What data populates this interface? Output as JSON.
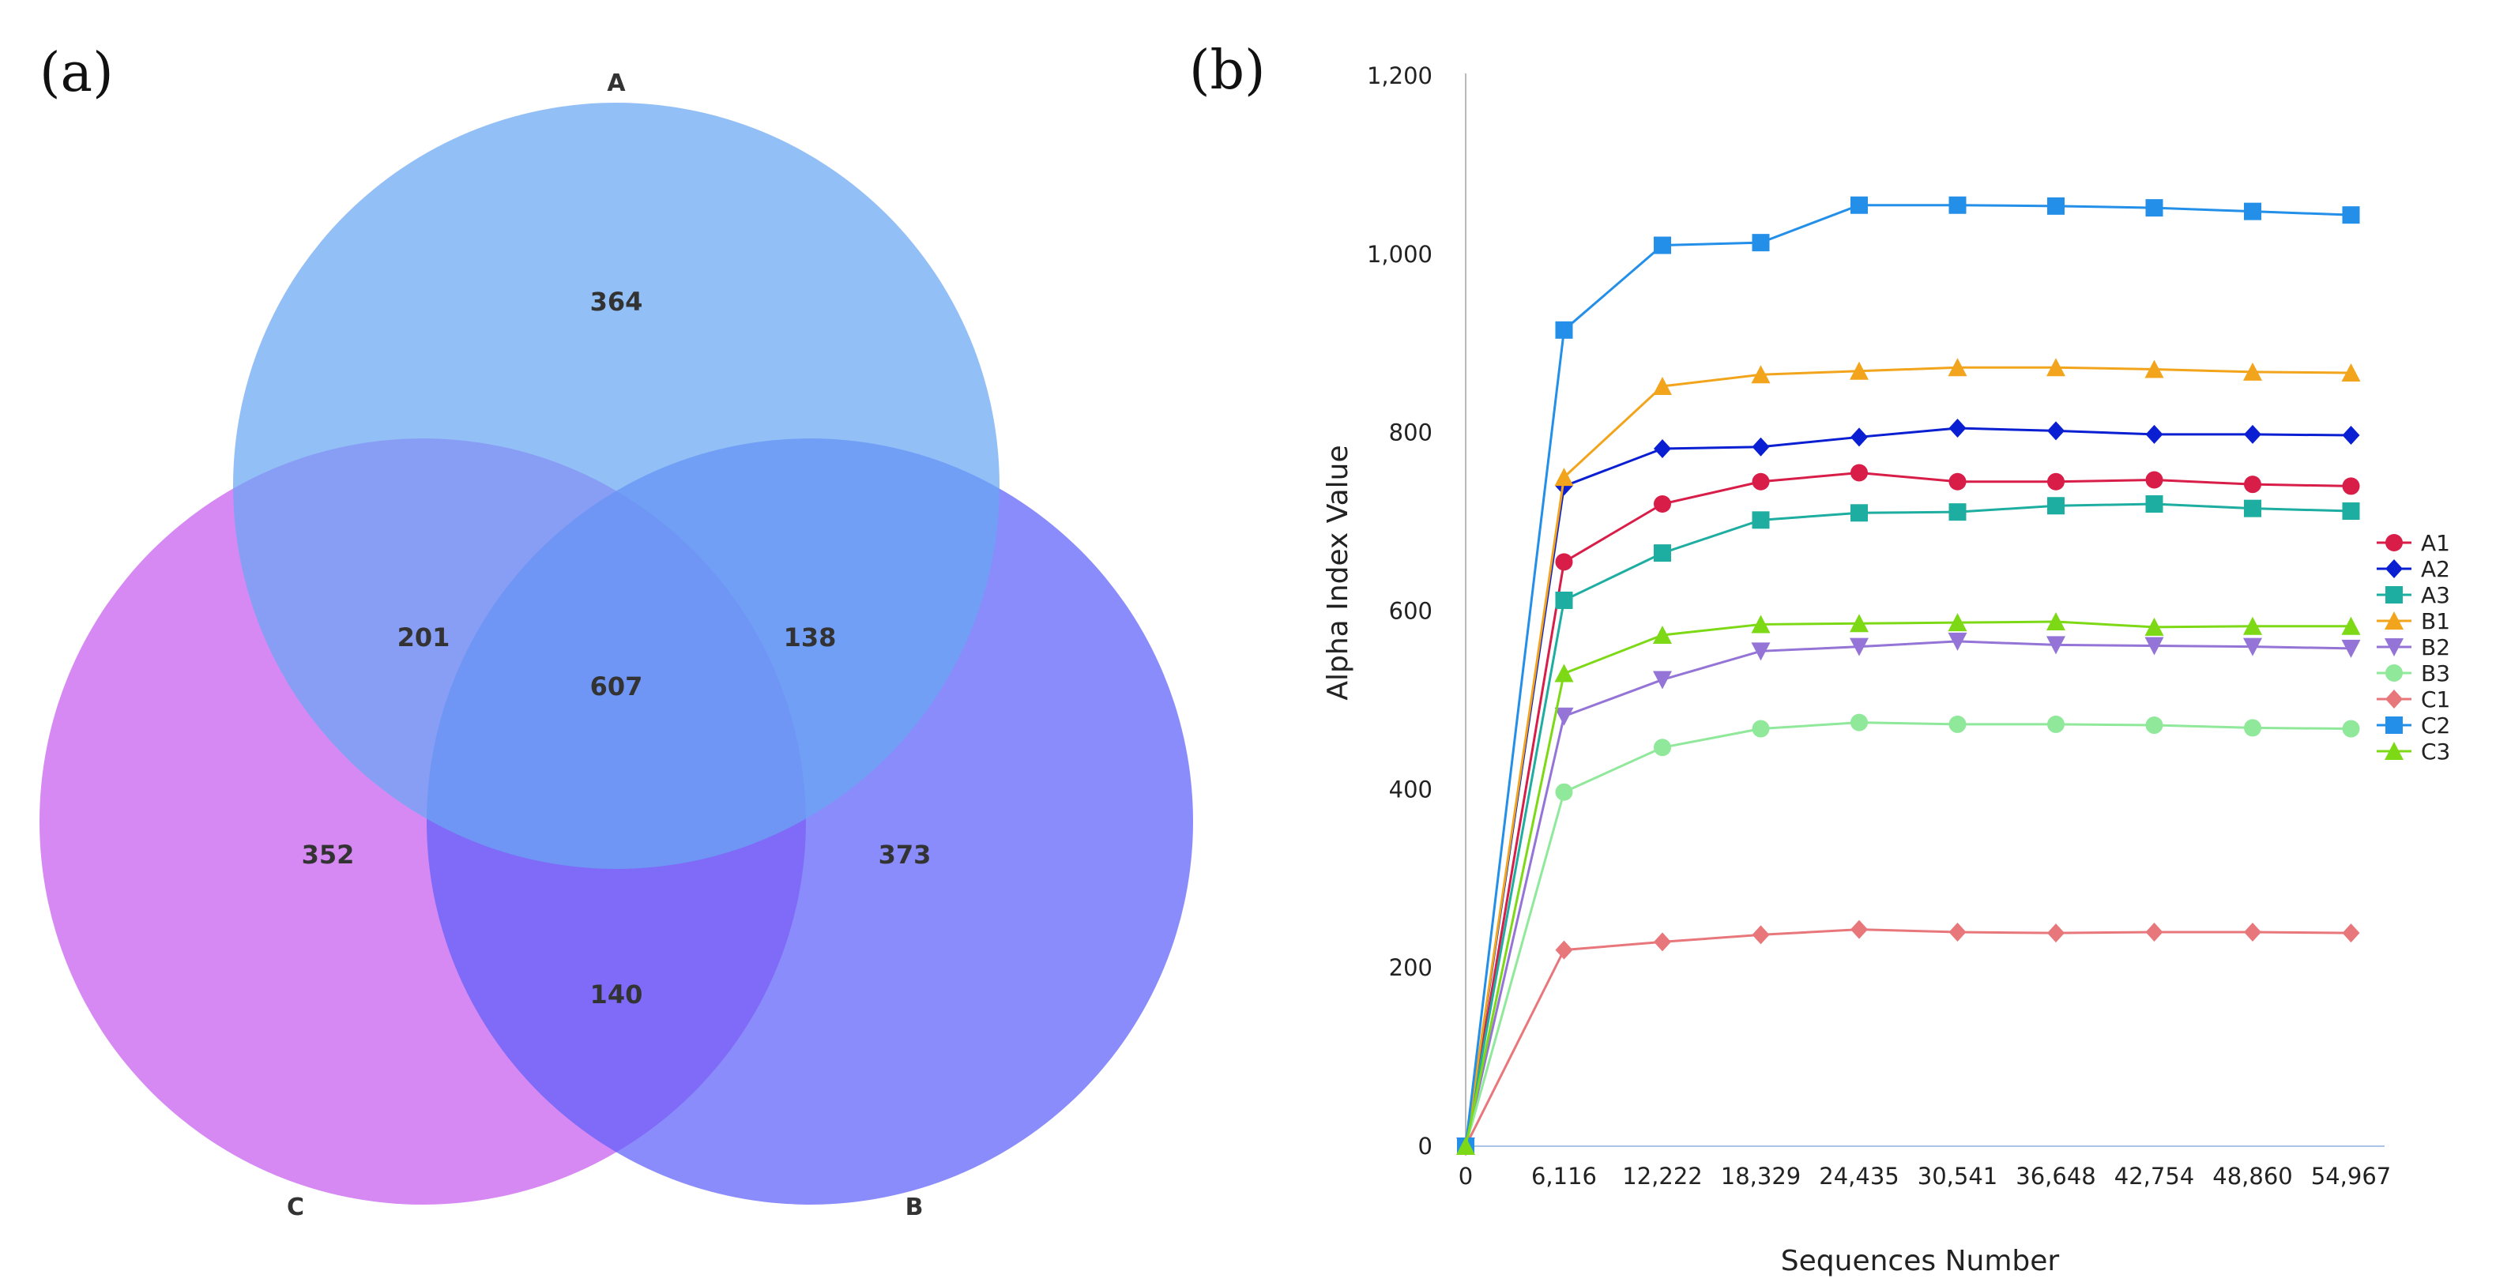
{
  "panels": {
    "a_label": "(a)",
    "b_label": "(b)"
  },
  "chart_data": [
    {
      "type": "venn",
      "sets": [
        "A",
        "B",
        "C"
      ],
      "colors": {
        "A": "#6aa6f4",
        "B": "#5d5ffa",
        "C": "#c65cef"
      },
      "regions": {
        "A_only": 364,
        "B_only": 373,
        "C_only": 352,
        "A_C": 201,
        "A_B": 138,
        "B_C": 140,
        "A_B_C": 607
      }
    },
    {
      "type": "line",
      "title": "",
      "xlabel": "Sequences Number",
      "ylabel": "Alpha Index Value",
      "x": [
        0,
        6116,
        12222,
        18329,
        24435,
        30541,
        36648,
        42754,
        48860,
        54967
      ],
      "x_tick_labels": [
        "0",
        "6,116",
        "12,222",
        "18,329",
        "24,435",
        "30,541",
        "36,648",
        "42,754",
        "48,860",
        "54,967"
      ],
      "ylim": [
        0,
        1200
      ],
      "y_ticks": [
        0,
        200,
        400,
        600,
        800,
        1000,
        1200
      ],
      "y_tick_labels": [
        "0",
        "200",
        "400",
        "600",
        "800",
        "1,000",
        "1,200"
      ],
      "legend_position": "right",
      "series": [
        {
          "name": "A1",
          "color": "#d81e48",
          "marker": "circle",
          "values": [
            0,
            655,
            720,
            745,
            755,
            745,
            745,
            747,
            742,
            740
          ]
        },
        {
          "name": "A2",
          "color": "#0a1fd1",
          "marker": "diamond",
          "values": [
            0,
            740,
            782,
            784,
            795,
            805,
            802,
            798,
            798,
            797
          ]
        },
        {
          "name": "A3",
          "color": "#1eada1",
          "marker": "square",
          "values": [
            0,
            612,
            665,
            702,
            710,
            711,
            718,
            720,
            715,
            712
          ]
        },
        {
          "name": "B1",
          "color": "#f2a51c",
          "marker": "triangle-up",
          "values": [
            0,
            750,
            852,
            865,
            869,
            873,
            873,
            871,
            868,
            867
          ]
        },
        {
          "name": "B2",
          "color": "#9474d6",
          "marker": "triangle-down",
          "values": [
            0,
            482,
            523,
            555,
            560,
            566,
            562,
            561,
            560,
            558
          ]
        },
        {
          "name": "B3",
          "color": "#90e89a",
          "marker": "circle",
          "values": [
            0,
            397,
            447,
            468,
            475,
            473,
            473,
            472,
            469,
            468
          ]
        },
        {
          "name": "C1",
          "color": "#e8777c",
          "marker": "diamond",
          "values": [
            0,
            220,
            229,
            237,
            243,
            240,
            239,
            240,
            240,
            239
          ]
        },
        {
          "name": "C2",
          "color": "#238fe8",
          "marker": "square",
          "values": [
            0,
            915,
            1010,
            1013,
            1055,
            1055,
            1054,
            1052,
            1048,
            1044
          ]
        },
        {
          "name": "C3",
          "color": "#7dd916",
          "marker": "triangle-up",
          "values": [
            0,
            530,
            573,
            585,
            586,
            587,
            588,
            582,
            583,
            583
          ]
        }
      ]
    }
  ]
}
